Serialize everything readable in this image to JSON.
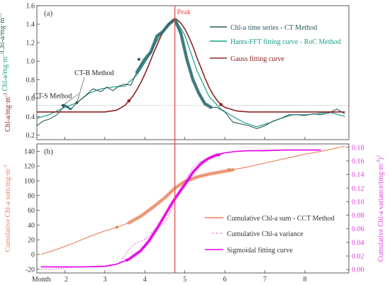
{
  "chart_data": [
    {
      "panel": "(a)",
      "type": "line",
      "xlim": [
        1.3,
        9.1
      ],
      "ylim": [
        0.15,
        1.6
      ],
      "yticks": [
        0.2,
        0.4,
        0.6,
        0.8,
        1.0,
        1.2,
        1.4,
        1.6
      ],
      "ylabel_parts": [
        {
          "text": "Chl-a/mg·m",
          "sup": "-3",
          "color": "#8b2323"
        },
        {
          "text": " Chl-a/mg·m",
          "sup": "-3",
          "color": "#1a9e86"
        },
        {
          "text": "Chl-a/mg·m",
          "sup": "-3",
          "color": "#2a5a5e"
        }
      ],
      "reference_line_y": 0.52,
      "peak_x": 4.75,
      "peak_label": "Peak",
      "annotations": [
        {
          "text": "CT-S Method",
          "x": 1.6,
          "y": 0.63
        },
        {
          "text": "CT-B Method",
          "x": 2.1,
          "y": 0.88
        }
      ],
      "series": [
        {
          "name": "Chl-a time series - CT Method",
          "color": "#2a5a5e",
          "x": [
            1.3,
            1.45,
            1.6,
            1.8,
            2.0,
            2.15,
            2.3,
            2.5,
            2.7,
            2.9,
            3.05,
            3.2,
            3.35,
            3.5,
            3.65,
            3.8,
            4.0,
            4.15,
            4.3,
            4.45,
            4.6,
            4.75,
            4.9,
            5.05,
            5.2,
            5.35,
            5.5,
            5.65,
            5.8,
            6.0,
            6.2,
            6.4,
            6.6,
            6.8,
            7.0,
            7.2,
            7.4,
            7.6,
            7.8,
            8.0,
            8.2,
            8.4,
            8.6,
            8.8,
            9.0
          ],
          "y": [
            0.3,
            0.35,
            0.37,
            0.42,
            0.52,
            0.48,
            0.55,
            0.62,
            0.7,
            0.67,
            0.72,
            0.68,
            0.73,
            0.75,
            0.74,
            0.88,
            1.02,
            1.1,
            1.27,
            1.32,
            1.4,
            1.45,
            1.3,
            1.02,
            0.8,
            0.65,
            0.54,
            0.5,
            0.5,
            0.45,
            0.34,
            0.32,
            0.3,
            0.27,
            0.3,
            0.35,
            0.38,
            0.42,
            0.42,
            0.41,
            0.43,
            0.42,
            0.44,
            0.48,
            0.43
          ]
        },
        {
          "name": "Hants-FFT fitting curve - RoC Method",
          "color": "#1a9e86",
          "x": [
            1.3,
            1.6,
            2.0,
            2.3,
            2.6,
            2.9,
            3.2,
            3.5,
            3.8,
            4.1,
            4.4,
            4.75,
            5.0,
            5.3,
            5.6,
            5.9,
            6.2,
            6.5,
            6.8,
            7.1,
            7.4,
            7.7,
            8.0,
            8.3,
            8.6,
            9.0
          ],
          "y": [
            0.38,
            0.42,
            0.5,
            0.55,
            0.65,
            0.7,
            0.72,
            0.73,
            0.85,
            1.05,
            1.3,
            1.46,
            1.28,
            0.9,
            0.62,
            0.48,
            0.4,
            0.33,
            0.29,
            0.33,
            0.38,
            0.42,
            0.42,
            0.43,
            0.45,
            0.4
          ]
        },
        {
          "name": "Gauss fitting curve",
          "color": "#8b2323",
          "x": [
            1.3,
            2.0,
            2.5,
            3.0,
            3.3,
            3.5,
            3.6,
            3.7,
            3.8,
            3.9,
            4.0,
            4.1,
            4.2,
            4.3,
            4.4,
            4.5,
            4.6,
            4.7,
            4.75,
            4.8,
            4.9,
            5.0,
            5.1,
            5.2,
            5.3,
            5.4,
            5.5,
            5.6,
            5.7,
            5.8,
            5.9,
            6.0,
            6.3,
            6.6,
            7.0,
            7.5,
            8.0,
            8.5,
            9.0
          ],
          "y": [
            0.45,
            0.45,
            0.45,
            0.45,
            0.47,
            0.52,
            0.57,
            0.62,
            0.69,
            0.77,
            0.86,
            0.96,
            1.07,
            1.17,
            1.27,
            1.35,
            1.41,
            1.45,
            1.46,
            1.45,
            1.41,
            1.35,
            1.26,
            1.16,
            1.04,
            0.93,
            0.82,
            0.72,
            0.64,
            0.58,
            0.53,
            0.5,
            0.46,
            0.45,
            0.45,
            0.45,
            0.45,
            0.45,
            0.45
          ]
        }
      ]
    },
    {
      "panel": "(b)",
      "type": "line",
      "xlim": [
        1.3,
        9.1
      ],
      "xticks": [
        2,
        3,
        4,
        5,
        6,
        7,
        8
      ],
      "xlabel": "Month",
      "ylim_left": [
        -25,
        150
      ],
      "yticks_left": [
        -20,
        0,
        20,
        40,
        60,
        80,
        100,
        120,
        140
      ],
      "ylabel_left": "Cumulative Chl-a sum/mg·m",
      "ylabel_left_sup": "-3",
      "ylim_right": [
        -0.005,
        0.185
      ],
      "yticks_right": [
        0.0,
        0.02,
        0.04,
        0.06,
        0.08,
        0.1,
        0.12,
        0.14,
        0.16,
        0.18
      ],
      "ylabel_right": "Cumulative Chl-a variance/(mg·m",
      "ylabel_right_sup": "-3",
      "ylabel_right_tail": ")",
      "ylabel_right_sup2": "2",
      "series": [
        {
          "name": "Cumulative Chl-a  sum - CCT Method",
          "color": "#e8825a",
          "axis": "left",
          "x": [
            1.4,
            1.8,
            2.2,
            2.6,
            3.0,
            3.3,
            3.6,
            3.9,
            4.2,
            4.5,
            4.75,
            5.0,
            5.3,
            5.6,
            5.9,
            6.2,
            6.6,
            7.0,
            7.5,
            8.0,
            8.5,
            9.0
          ],
          "y": [
            0,
            7,
            15,
            24,
            32,
            37,
            43,
            52,
            64,
            77,
            90,
            99,
            105,
            109,
            112,
            115,
            119,
            124,
            130,
            136,
            141,
            147
          ]
        },
        {
          "name": "Cumulative Chl-a  variance",
          "color": "#e03ce0",
          "axis": "right",
          "x": [
            1.4,
            1.7,
            2.0,
            2.3,
            2.6,
            2.9,
            3.2,
            3.4,
            3.6,
            3.8,
            3.95,
            4.1,
            4.25,
            4.4,
            4.5,
            4.6,
            4.75,
            4.9,
            5.05,
            5.2,
            5.35,
            5.5,
            5.7,
            5.85,
            6.0,
            6.3,
            6.7,
            7.0,
            7.5,
            8.0,
            8.4
          ],
          "y": [
            0.0,
            0.001,
            0.002,
            0.004,
            0.004,
            0.004,
            0.005,
            0.012,
            0.03,
            0.04,
            0.043,
            0.048,
            0.06,
            0.065,
            0.07,
            0.08,
            0.1,
            0.12,
            0.135,
            0.15,
            0.158,
            0.162,
            0.165,
            0.168,
            0.172,
            0.174,
            0.175,
            0.176,
            0.176,
            0.176,
            0.176
          ]
        },
        {
          "name": "Sigmoidal fitting curve",
          "color": "#e600e6",
          "axis": "right",
          "x": [
            1.4,
            2.0,
            2.5,
            3.0,
            3.3,
            3.6,
            3.9,
            4.1,
            4.3,
            4.5,
            4.7,
            4.85,
            5.0,
            5.2,
            5.4,
            5.6,
            5.8,
            6.0,
            6.3,
            6.6,
            7.0,
            7.5,
            8.0,
            8.4
          ],
          "y": [
            0.004,
            0.004,
            0.004,
            0.005,
            0.008,
            0.015,
            0.028,
            0.042,
            0.06,
            0.08,
            0.1,
            0.113,
            0.125,
            0.143,
            0.156,
            0.164,
            0.169,
            0.172,
            0.174,
            0.175,
            0.175,
            0.176,
            0.176,
            0.176
          ]
        }
      ]
    }
  ]
}
